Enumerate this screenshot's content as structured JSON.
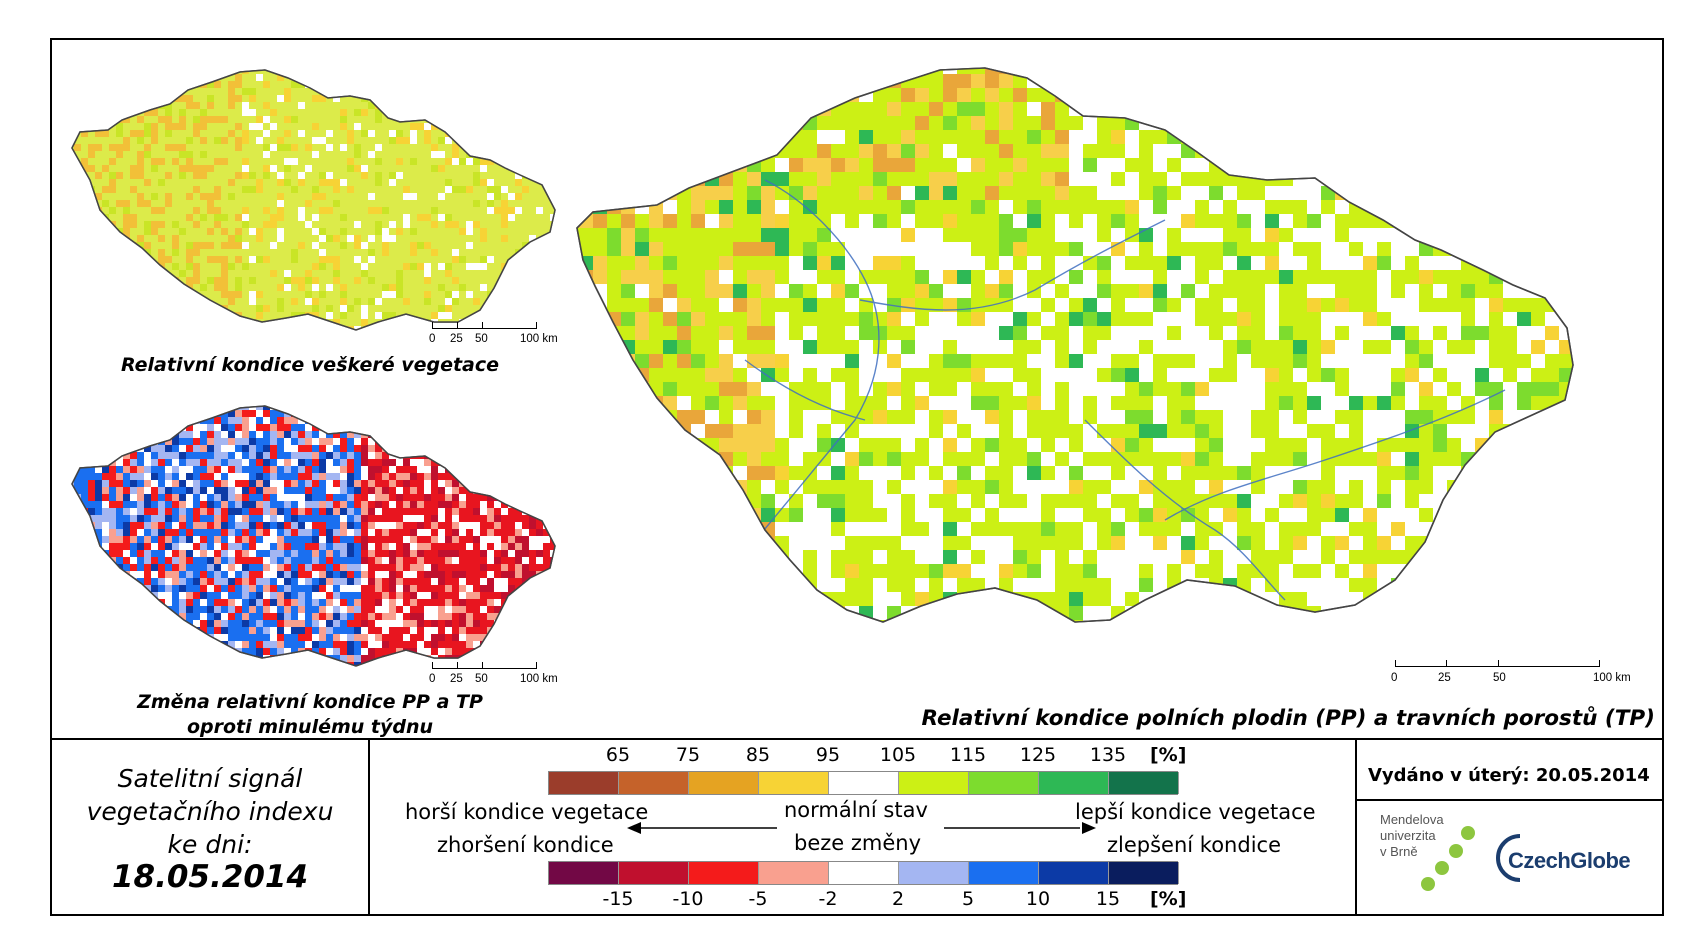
{
  "maps": {
    "top_left": {
      "title": "Relativní kondice veškeré vegetace",
      "scale": {
        "ticks": [
          "0",
          "25",
          "50"
        ],
        "end": "100 km"
      }
    },
    "bottom_left": {
      "title_line1": "Změna relativní kondice PP a TP",
      "title_line2": "oproti minulému týdnu",
      "scale": {
        "ticks": [
          "0",
          "25",
          "50"
        ],
        "end": "100 km"
      }
    },
    "main": {
      "title": "Relativní kondice polních plodin (PP) a travních porostů (TP)",
      "scale": {
        "ticks": [
          "0",
          "25",
          "50"
        ],
        "end": "100 km"
      }
    }
  },
  "info": {
    "signal_line1": "Satelitní signál",
    "signal_line2": "vegetačního indexu",
    "signal_line3": "ke dni:",
    "date": "18.05.2014"
  },
  "legend": {
    "top_labels": [
      "65",
      "75",
      "85",
      "95",
      "105",
      "115",
      "125",
      "135"
    ],
    "top_unit": "[%]",
    "top_colors": [
      "#9b3d2b",
      "#c5622a",
      "#e5a322",
      "#f7d335",
      "#ffffff",
      "#ccf015",
      "#7ddc2e",
      "#2eb855",
      "#13734b"
    ],
    "bottom_labels": [
      "-15",
      "-10",
      "-5",
      "-2",
      "2",
      "5",
      "10",
      "15"
    ],
    "bottom_unit": "[%]",
    "bottom_colors": [
      "#720845",
      "#c0102e",
      "#f41b1b",
      "#f9a08f",
      "#ffffff",
      "#a4b6f2",
      "#1a6ff0",
      "#0c3aa6",
      "#0a1d5e"
    ],
    "worse_line1": "horší kondice vegetace",
    "worse_line2": "zhoršení kondice",
    "normal_line1": "normální stav",
    "normal_line2": "beze změny",
    "better_line1": "lepší kondice vegetace",
    "better_line2": "zlepšení kondice"
  },
  "issued": {
    "text": "Vydáno v úterý: 20.05.2014",
    "logo1_line1": "Mendelova",
    "logo1_line2": "univerzita",
    "logo1_line3": "v Brně",
    "logo2": "CzechGlobe"
  },
  "icons": {
    "map_top_left": "czech-vegetation-condition-map",
    "map_bottom_left": "czech-vegetation-change-map",
    "map_main": "czech-crop-grassland-condition-map",
    "arrow_left": "arrow-left-icon",
    "arrow_right": "arrow-right-icon",
    "mendel_logo": "mendel-university-logo",
    "czechglobe_logo": "czechglobe-logo"
  }
}
